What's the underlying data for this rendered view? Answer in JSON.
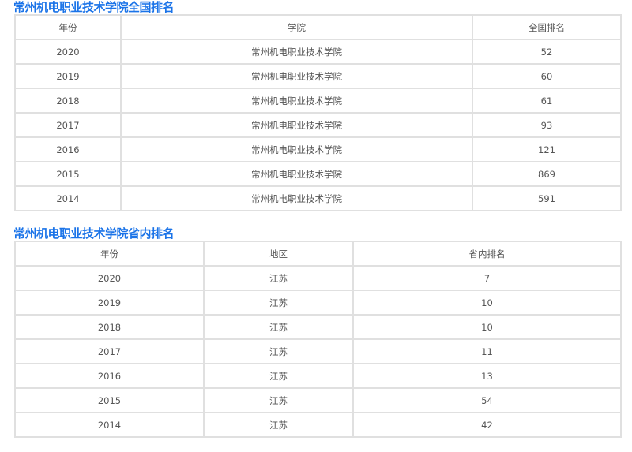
{
  "national": {
    "title": "常州机电职业技术学院全国排名",
    "headers": [
      "年份",
      "学院",
      "全国排名"
    ],
    "rows": [
      [
        "2020",
        "常州机电职业技术学院",
        "52"
      ],
      [
        "2019",
        "常州机电职业技术学院",
        "60"
      ],
      [
        "2018",
        "常州机电职业技术学院",
        "61"
      ],
      [
        "2017",
        "常州机电职业技术学院",
        "93"
      ],
      [
        "2016",
        "常州机电职业技术学院",
        "121"
      ],
      [
        "2015",
        "常州机电职业技术学院",
        "869"
      ],
      [
        "2014",
        "常州机电职业技术学院",
        "591"
      ]
    ]
  },
  "provincial": {
    "title": "常州机电职业技术学院省内排名",
    "headers": [
      "年份",
      "地区",
      "省内排名"
    ],
    "rows": [
      [
        "2020",
        "江苏",
        "7"
      ],
      [
        "2019",
        "江苏",
        "10"
      ],
      [
        "2018",
        "江苏",
        "10"
      ],
      [
        "2017",
        "江苏",
        "11"
      ],
      [
        "2016",
        "江苏",
        "13"
      ],
      [
        "2015",
        "江苏",
        "54"
      ],
      [
        "2014",
        "江苏",
        "42"
      ]
    ]
  }
}
